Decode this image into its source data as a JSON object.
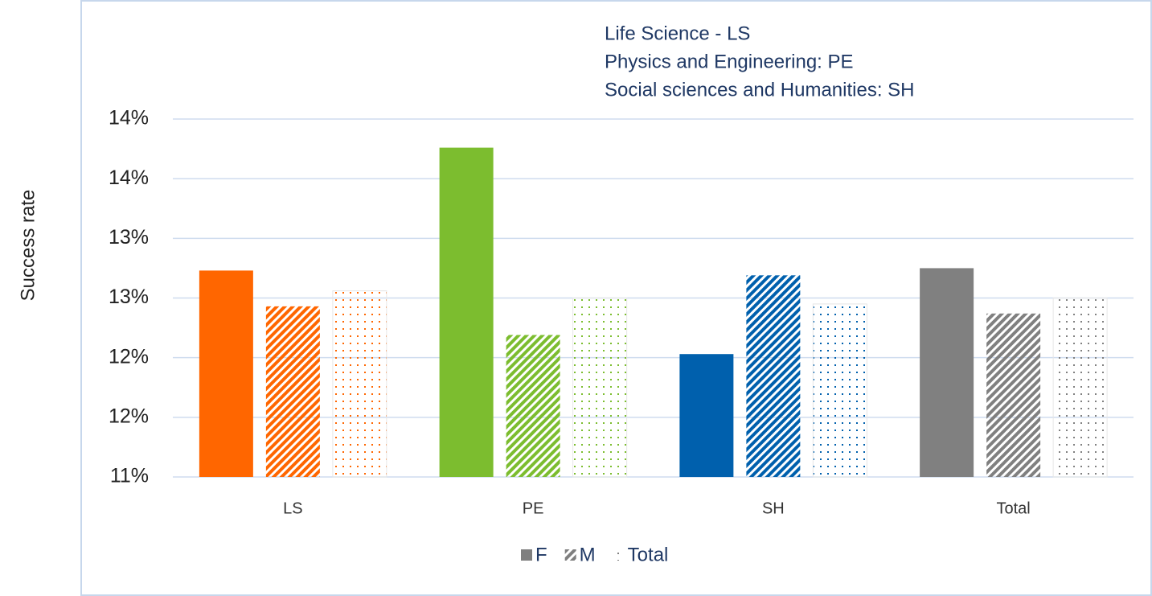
{
  "chart_data": {
    "type": "bar",
    "y_label": "Success rate",
    "annotations": [
      "Life Science - LS",
      "Physics and Engineering: PE",
      "Social sciences and Humanities: SH"
    ],
    "categories": [
      "LS",
      "PE",
      "SH",
      "Total"
    ],
    "category_colors": [
      "#ff6600",
      "#7cbd2f",
      "#0060ad",
      "#808080"
    ],
    "legend_color": "#7f7f7f",
    "series": [
      {
        "name": "F",
        "pattern": "solid",
        "values": [
          12.73,
          13.76,
          12.03,
          12.75
        ]
      },
      {
        "name": "M",
        "pattern": "hatch",
        "values": [
          12.43,
          12.19,
          12.69,
          12.37
        ]
      },
      {
        "name": "Total",
        "pattern": "dots",
        "values": [
          12.56,
          12.5,
          12.45,
          12.5
        ]
      }
    ],
    "ylim": [
      11,
      14
    ],
    "yticks": [
      {
        "value": 11,
        "label": "11%"
      },
      {
        "value": 11.5,
        "label": "12%"
      },
      {
        "value": 12,
        "label": "12%"
      },
      {
        "value": 12.5,
        "label": "13%"
      },
      {
        "value": 13,
        "label": "13%"
      },
      {
        "value": 13.5,
        "label": "14%"
      },
      {
        "value": 14,
        "label": "14%"
      }
    ],
    "grid": true
  }
}
